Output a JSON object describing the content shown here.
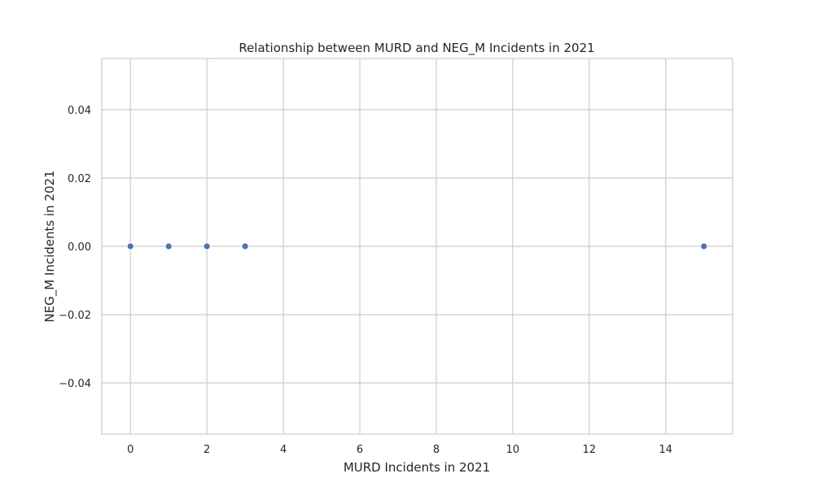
{
  "chart_data": {
    "type": "scatter",
    "title": "Relationship between MURD and NEG_M Incidents in 2021",
    "xlabel": "MURD Incidents in 2021",
    "ylabel": "NEG_M Incidents in 2021",
    "xlim": [
      -0.75,
      15.75
    ],
    "ylim": [
      -0.055,
      0.055
    ],
    "xticks": [
      0,
      2,
      4,
      6,
      8,
      10,
      12,
      14
    ],
    "yticks": [
      -0.04,
      -0.02,
      0.0,
      0.02,
      0.04
    ],
    "xtick_labels": [
      "0",
      "2",
      "4",
      "6",
      "8",
      "10",
      "12",
      "14"
    ],
    "ytick_labels": [
      "−0.04",
      "−0.02",
      "0.00",
      "0.02",
      "0.04"
    ],
    "grid": true,
    "marker_color": "#4c72b0",
    "grid_color": "#cccccc",
    "points": [
      {
        "x": 0,
        "y": 0.0
      },
      {
        "x": 1,
        "y": 0.0
      },
      {
        "x": 2,
        "y": 0.0
      },
      {
        "x": 3,
        "y": 0.0
      },
      {
        "x": 15,
        "y": 0.0
      }
    ]
  }
}
